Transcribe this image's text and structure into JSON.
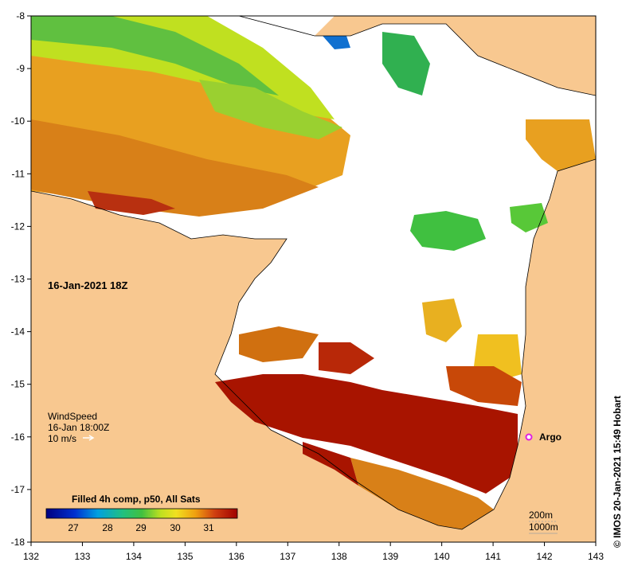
{
  "map": {
    "date_label": "16-Jan-2021 18Z",
    "wind_title": "WindSpeed",
    "wind_time": "16-Jan 18:00Z",
    "wind_scale": "10 m/s",
    "argo_label": "Argo",
    "colorbar_title": "Filled 4h comp, p50, All Sats",
    "colorbar_ticks": [
      "27",
      "28",
      "29",
      "30",
      "31"
    ],
    "contour_200": "200m",
    "contour_1000": "1000m",
    "credit": "© IMOS 20-Jan-2021 15:49 Hobart",
    "x_ticks": [
      "132",
      "133",
      "134",
      "135",
      "136",
      "137",
      "138",
      "139",
      "140",
      "141",
      "142",
      "143"
    ],
    "y_ticks": [
      "-8",
      "-9",
      "-10",
      "-11",
      "-12",
      "-13",
      "-14",
      "-15",
      "-16",
      "-17",
      "-18"
    ],
    "colors": {
      "land": "#f8c890",
      "nodata": "#ffffff",
      "sst_hot": "#a81400",
      "sst_orange": "#e08010",
      "sst_yellow": "#f0c818",
      "sst_green": "#40c040",
      "sst_cool": "#00a0e0",
      "sst_cold": "#000080",
      "argo": "#e020e0"
    }
  }
}
